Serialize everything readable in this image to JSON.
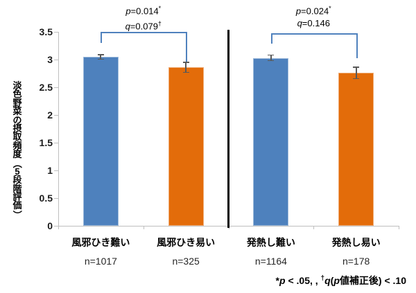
{
  "chart_data": {
    "type": "bar",
    "categories": [
      "風邪ひき難い",
      "風邪ひき易い",
      "発熱し難い",
      "発熱し易い"
    ],
    "values": [
      3.05,
      2.86,
      3.03,
      2.76
    ],
    "error_bars": [
      0.05,
      0.1,
      0.06,
      0.11
    ],
    "n_labels": [
      "n=1017",
      "n=325",
      "n=1164",
      "n=178"
    ],
    "bar_colors": [
      "#4E81BD",
      "#E36C0A",
      "#4E81BD",
      "#E36C0A"
    ],
    "ylabel": "淡色野菜の摂取頻度（5段階評価）",
    "ylim": [
      0,
      3.5
    ],
    "ytick_step": 0.5,
    "yticks": [
      "0",
      "0.5",
      "1",
      "1.5",
      "2",
      "2.5",
      "3",
      "3.5"
    ],
    "grid": false,
    "legend": "none",
    "group_divider_between": [
      1,
      2
    ],
    "annotations": [
      {
        "pair": [
          0,
          1
        ],
        "lines": [
          {
            "var": "p",
            "text": "=0.014",
            "sup": "*"
          },
          {
            "var": "q",
            "text": "=0.079",
            "sup": "†"
          }
        ]
      },
      {
        "pair": [
          2,
          3
        ],
        "lines": [
          {
            "var": "p",
            "text": "=0.024",
            "sup": "*"
          },
          {
            "var": "q",
            "text": "=0.146",
            "sup": ""
          }
        ]
      }
    ]
  },
  "footnote": {
    "star": "*",
    "p_var": "p",
    "mid": " < .05, , ",
    "dagger": "†",
    "q_var": "q",
    "paren_open": "(",
    "inner_p": "p",
    "tail": "値補正後) < .10"
  },
  "colors": {
    "bar_blue": "#4E81BD",
    "bar_orange": "#E36C0A",
    "bracket": "#4F81BD",
    "axis": "#BFBFBF",
    "error_bar": "#595959",
    "divider": "#000000",
    "text": "#262626"
  }
}
